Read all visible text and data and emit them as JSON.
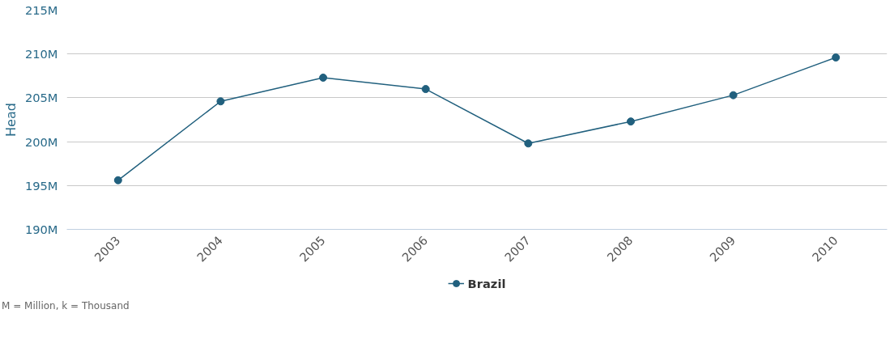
{
  "chart_data": {
    "type": "line",
    "ylabel": "Head",
    "categories": [
      "2003",
      "2004",
      "2005",
      "2006",
      "2007",
      "2008",
      "2009",
      "2010"
    ],
    "series": [
      {
        "name": "Brazil",
        "color": "#21607e",
        "values": [
          195600000,
          204600000,
          207300000,
          206000000,
          199800000,
          202300000,
          205300000,
          209600000
        ]
      }
    ],
    "ylim": [
      190000000,
      215000000
    ],
    "yticks": [
      {
        "value": 190000000,
        "label": "190M"
      },
      {
        "value": 195000000,
        "label": "195M"
      },
      {
        "value": 200000000,
        "label": "200M"
      },
      {
        "value": 205000000,
        "label": "205M"
      },
      {
        "value": 210000000,
        "label": "210M"
      },
      {
        "value": 215000000,
        "label": "215M"
      }
    ],
    "grid": "y",
    "legend": "bottom",
    "marker": "circle",
    "line_style": "solid",
    "annotations": [
      "M = Million, k = Thousand"
    ]
  }
}
